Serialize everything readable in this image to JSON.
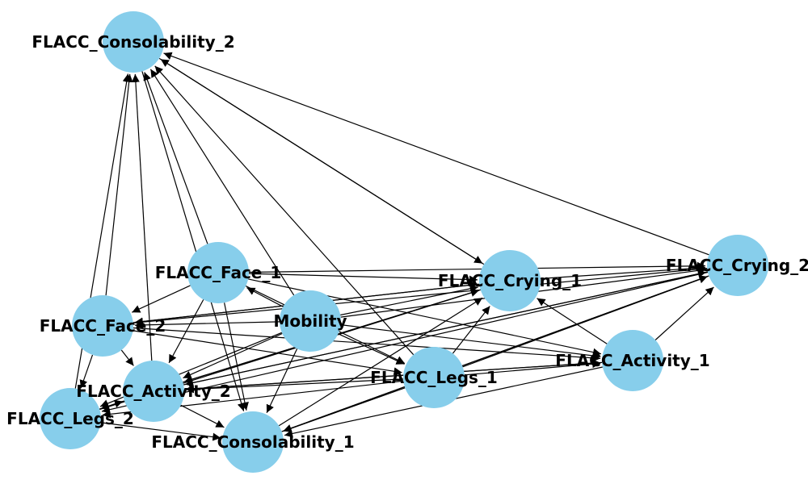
{
  "graph": {
    "node_color": "#87CEEB",
    "edge_color": "#000000",
    "nodes": [
      {
        "id": "FLACC_Consolability_2",
        "label": "FLACC_Consolability_2"
      },
      {
        "id": "FLACC_Face_1",
        "label": "FLACC_Face_1"
      },
      {
        "id": "FLACC_Crying_1",
        "label": "FLACC_Crying_1"
      },
      {
        "id": "FLACC_Crying_2",
        "label": "FLACC_Crying_2"
      },
      {
        "id": "FLACC_Face_2",
        "label": "FLACC_Face_2"
      },
      {
        "id": "Mobility",
        "label": "Mobility"
      },
      {
        "id": "FLACC_Activity_1",
        "label": "FLACC_Activity_1"
      },
      {
        "id": "FLACC_Legs_1",
        "label": "FLACC_Legs_1"
      },
      {
        "id": "FLACC_Activity_2",
        "label": "FLACC_Activity_2"
      },
      {
        "id": "FLACC_Legs_2",
        "label": "FLACC_Legs_2"
      },
      {
        "id": "FLACC_Consolability_1",
        "label": "FLACC_Consolability_1"
      }
    ],
    "edges": [
      [
        "FLACC_Face_1",
        "FLACC_Consolability_2"
      ],
      [
        "FLACC_Face_2",
        "FLACC_Consolability_2"
      ],
      [
        "FLACC_Legs_2",
        "FLACC_Consolability_2"
      ],
      [
        "FLACC_Activity_2",
        "FLACC_Consolability_2"
      ],
      [
        "Mobility",
        "FLACC_Consolability_2"
      ],
      [
        "FLACC_Crying_1",
        "FLACC_Consolability_2"
      ],
      [
        "FLACC_Crying_2",
        "FLACC_Consolability_2"
      ],
      [
        "FLACC_Legs_1",
        "FLACC_Consolability_2"
      ],
      [
        "FLACC_Activity_1",
        "FLACC_Crying_1"
      ],
      [
        "FLACC_Consolability_2",
        "FLACC_Consolability_1"
      ],
      [
        "FLACC_Consolability_2",
        "FLACC_Crying_1"
      ],
      [
        "FLACC_Face_1",
        "FLACC_Crying_2"
      ],
      [
        "FLACC_Face_1",
        "FLACC_Crying_1"
      ],
      [
        "FLACC_Face_1",
        "FLACC_Face_2"
      ],
      [
        "FLACC_Face_1",
        "FLACC_Activity_2"
      ],
      [
        "FLACC_Face_1",
        "FLACC_Consolability_1"
      ],
      [
        "FLACC_Face_1",
        "FLACC_Activity_1"
      ],
      [
        "FLACC_Face_1",
        "FLACC_Legs_1"
      ],
      [
        "Mobility",
        "FLACC_Face_1"
      ],
      [
        "Mobility",
        "FLACC_Face_2"
      ],
      [
        "Mobility",
        "FLACC_Crying_1"
      ],
      [
        "Mobility",
        "FLACC_Crying_2"
      ],
      [
        "Mobility",
        "FLACC_Activity_1"
      ],
      [
        "Mobility",
        "FLACC_Legs_1"
      ],
      [
        "Mobility",
        "FLACC_Activity_2"
      ],
      [
        "Mobility",
        "FLACC_Consolability_1"
      ],
      [
        "Mobility",
        "FLACC_Legs_2"
      ],
      [
        "FLACC_Crying_1",
        "FLACC_Face_2"
      ],
      [
        "FLACC_Crying_1",
        "FLACC_Activity_2"
      ],
      [
        "FLACC_Crying_1",
        "FLACC_Crying_2"
      ],
      [
        "FLACC_Crying_2",
        "FLACC_Face_2"
      ],
      [
        "FLACC_Crying_2",
        "FLACC_Activity_2"
      ],
      [
        "FLACC_Crying_2",
        "FLACC_Consolability_1"
      ],
      [
        "FLACC_Crying_2",
        "FLACC_Legs_2"
      ],
      [
        "FLACC_Face_2",
        "FLACC_Activity_2"
      ],
      [
        "FLACC_Face_2",
        "FLACC_Legs_2"
      ],
      [
        "FLACC_Face_2",
        "FLACC_Crying_1"
      ],
      [
        "FLACC_Face_2",
        "FLACC_Activity_1"
      ],
      [
        "FLACC_Face_2",
        "FLACC_Legs_1"
      ],
      [
        "FLACC_Legs_1",
        "FLACC_Crying_1"
      ],
      [
        "FLACC_Legs_1",
        "FLACC_Crying_2"
      ],
      [
        "FLACC_Legs_1",
        "FLACC_Activity_1"
      ],
      [
        "FLACC_Legs_1",
        "FLACC_Activity_2"
      ],
      [
        "FLACC_Legs_1",
        "FLACC_Legs_2"
      ],
      [
        "FLACC_Legs_1",
        "FLACC_Consolability_1"
      ],
      [
        "FLACC_Activity_1",
        "FLACC_Crying_2"
      ],
      [
        "FLACC_Activity_1",
        "FLACC_Consolability_1"
      ],
      [
        "FLACC_Activity_1",
        "FLACC_Activity_2"
      ],
      [
        "FLACC_Activity_2",
        "FLACC_Legs_2"
      ],
      [
        "FLACC_Activity_2",
        "FLACC_Crying_1"
      ],
      [
        "FLACC_Activity_2",
        "FLACC_Crying_2"
      ],
      [
        "FLACC_Activity_2",
        "FLACC_Activity_1"
      ],
      [
        "FLACC_Activity_2",
        "FLACC_Consolability_1"
      ],
      [
        "FLACC_Legs_2",
        "FLACC_Activity_2"
      ],
      [
        "FLACC_Legs_2",
        "FLACC_Consolability_1"
      ],
      [
        "FLACC_Legs_2",
        "FLACC_Crying_1"
      ],
      [
        "FLACC_Consolability_1",
        "FLACC_Crying_1"
      ],
      [
        "FLACC_Consolability_1",
        "FLACC_Crying_2"
      ]
    ]
  }
}
